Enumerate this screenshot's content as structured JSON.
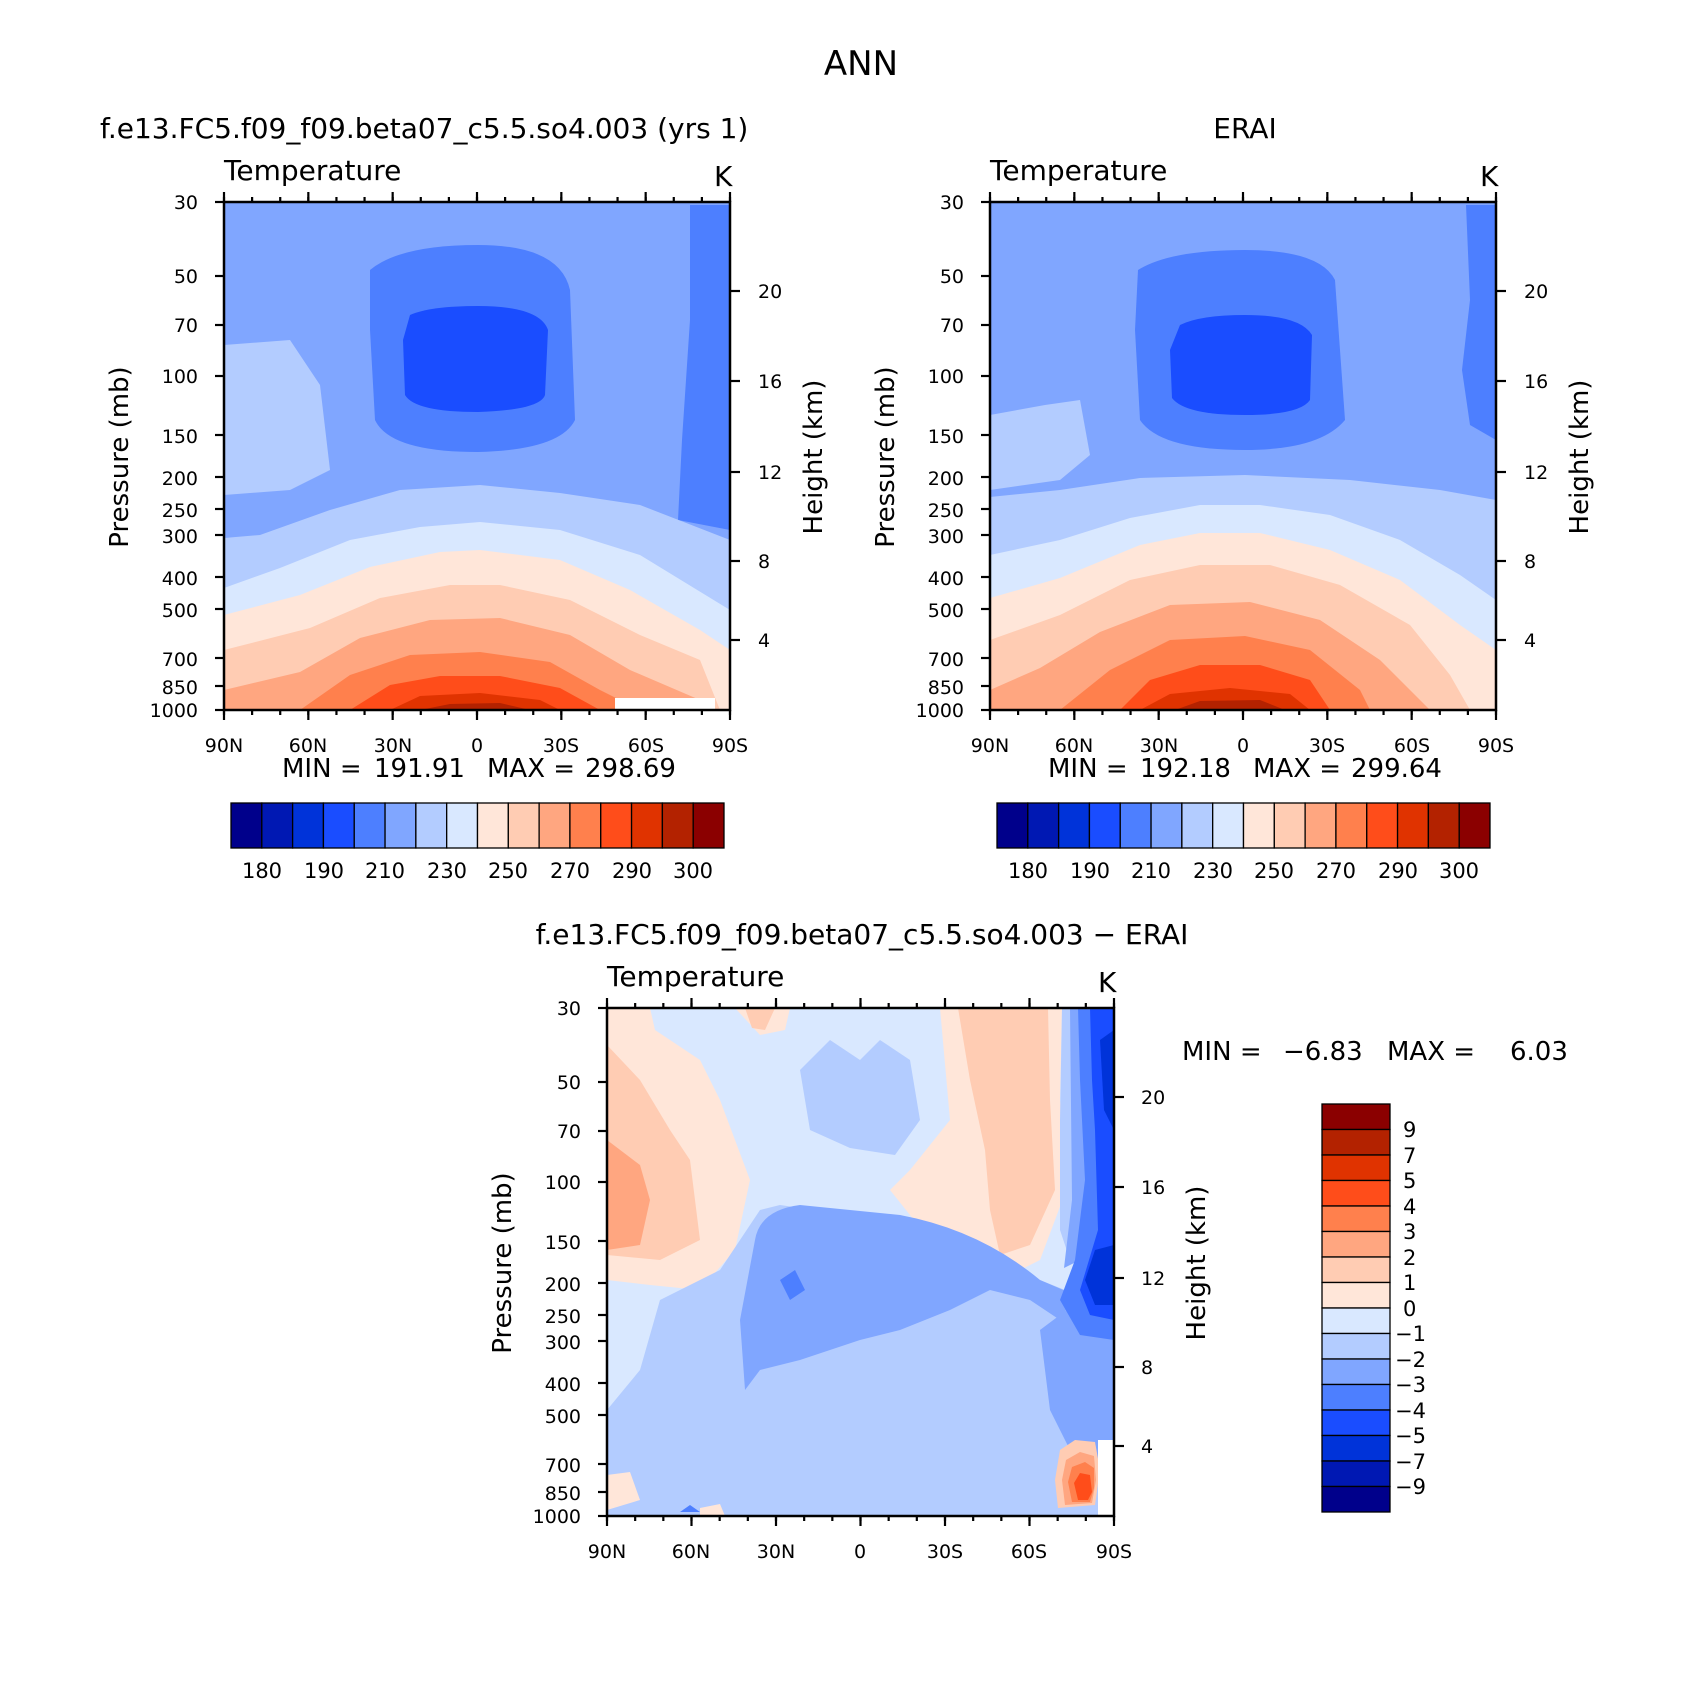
{
  "figure": {
    "title": "ANN",
    "palette": [
      "#00008b",
      "#0018b3",
      "#0033d9",
      "#1a4dff",
      "#4d7fff",
      "#80a6ff",
      "#b3ccff",
      "#d9e8ff",
      "#ffe6d9",
      "#ffccb3",
      "#ffa680",
      "#ff804d",
      "#ff4d1a",
      "#e03300",
      "#b32200",
      "#8b0000"
    ],
    "common": {
      "panel_title": "Temperature",
      "units": "K",
      "ylabel_left": "Pressure (mb)",
      "ylabel_right": "Height (km)",
      "min_label": "MIN =",
      "max_label": "MAX ="
    }
  },
  "chart_data": [
    {
      "type": "contour",
      "title": "f.e13.FC5.f09_f09.beta07_c5.5.so4.003 (yrs 1)",
      "subtitle": "Temperature",
      "units": "K",
      "ylabel": "Pressure (mb)",
      "y2label": "Height (km)",
      "x_ticks": [
        "90N",
        "60N",
        "30N",
        "0",
        "30S",
        "60S",
        "90S"
      ],
      "y_ticks": [
        30,
        50,
        70,
        100,
        150,
        200,
        250,
        300,
        400,
        500,
        700,
        850,
        1000
      ],
      "y2_ticks": [
        20,
        16,
        12,
        8,
        4
      ],
      "min": "191.91",
      "max": "298.69",
      "colorbar_labels": [
        "180",
        "190",
        "210",
        "230",
        "250",
        "270",
        "290",
        "300"
      ],
      "y_scale": "log",
      "ylim": [
        1000,
        30
      ]
    },
    {
      "type": "contour",
      "title": "ERAI",
      "subtitle": "Temperature",
      "units": "K",
      "ylabel": "Pressure (mb)",
      "y2label": "Height (km)",
      "x_ticks": [
        "90N",
        "60N",
        "30N",
        "0",
        "30S",
        "60S",
        "90S"
      ],
      "y_ticks": [
        30,
        50,
        70,
        100,
        150,
        200,
        250,
        300,
        400,
        500,
        700,
        850,
        1000
      ],
      "y2_ticks": [
        20,
        16,
        12,
        8,
        4
      ],
      "min": "192.18",
      "max": "299.64",
      "colorbar_labels": [
        "180",
        "190",
        "210",
        "230",
        "250",
        "270",
        "290",
        "300"
      ],
      "y_scale": "log",
      "ylim": [
        1000,
        30
      ]
    },
    {
      "type": "contour",
      "title": "f.e13.FC5.f09_f09.beta07_c5.5.so4.003 − ERAI",
      "subtitle": "Temperature",
      "units": "K",
      "ylabel": "Pressure (mb)",
      "y2label": "Height (km)",
      "x_ticks": [
        "90N",
        "60N",
        "30N",
        "0",
        "30S",
        "60S",
        "90S"
      ],
      "y_ticks": [
        30,
        50,
        70,
        100,
        150,
        200,
        250,
        300,
        400,
        500,
        700,
        850,
        1000
      ],
      "y2_ticks": [
        20,
        16,
        12,
        8,
        4
      ],
      "min": "−6.83",
      "max": "6.03",
      "colorbar_labels": [
        "9",
        "7",
        "5",
        "4",
        "3",
        "2",
        "1",
        "0",
        "−1",
        "−2",
        "−3",
        "−4",
        "−5",
        "−7",
        "−9"
      ],
      "y_scale": "log",
      "ylim": [
        1000,
        30
      ]
    }
  ]
}
